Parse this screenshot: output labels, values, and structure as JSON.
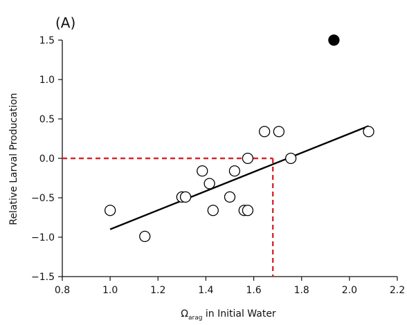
{
  "chart_data": {
    "type": "scatter",
    "panel_label": "(A)",
    "xlabel_symbol": "Ω",
    "xlabel_subscript": "arag",
    "xlabel_rest": " in Initial Water",
    "ylabel": "Relative Larval Producation",
    "xlim": [
      0.8,
      2.2
    ],
    "ylim": [
      -1.5,
      1.5
    ],
    "x_ticks": [
      0.8,
      1.0,
      1.2,
      1.4,
      1.6,
      1.8,
      2.0,
      2.2
    ],
    "x_tick_labels": [
      "0.8",
      "1.0",
      "1.2",
      "1.4",
      "1.6",
      "1.8",
      "2.0",
      "2.2"
    ],
    "y_ticks": [
      -1.5,
      -1.0,
      -0.5,
      0.0,
      0.5,
      1.0,
      1.5
    ],
    "y_tick_labels": [
      "−1.5",
      "−1.0",
      "−0.5",
      "0.0",
      "0.5",
      "1.0",
      "1.5"
    ],
    "grid": false,
    "points_open": [
      {
        "x": 1.0,
        "y": -0.66
      },
      {
        "x": 1.145,
        "y": -0.99
      },
      {
        "x": 1.3,
        "y": -0.49
      },
      {
        "x": 1.315,
        "y": -0.49
      },
      {
        "x": 1.385,
        "y": -0.16
      },
      {
        "x": 1.415,
        "y": -0.32
      },
      {
        "x": 1.43,
        "y": -0.66
      },
      {
        "x": 1.5,
        "y": -0.49
      },
      {
        "x": 1.52,
        "y": -0.16
      },
      {
        "x": 1.56,
        "y": -0.66
      },
      {
        "x": 1.575,
        "y": -0.66
      },
      {
        "x": 1.575,
        "y": 0.0
      },
      {
        "x": 1.645,
        "y": 0.34
      },
      {
        "x": 1.705,
        "y": 0.34
      },
      {
        "x": 1.755,
        "y": 0.0
      },
      {
        "x": 2.08,
        "y": 0.34
      }
    ],
    "points_filled": [
      {
        "x": 1.935,
        "y": 1.5
      }
    ],
    "regression_line": {
      "x": [
        1.0,
        2.08
      ],
      "y": [
        -0.9,
        0.41
      ]
    },
    "reference_lines": {
      "y": 0.0,
      "x": 1.68,
      "y_from": -1.5,
      "x_start": 0.8
    },
    "colors": {
      "axis": "#111111",
      "line": "#000000",
      "reference": "#d7262b",
      "marker_fill_open": "#ffffff",
      "marker_fill_closed": "#000000"
    }
  }
}
